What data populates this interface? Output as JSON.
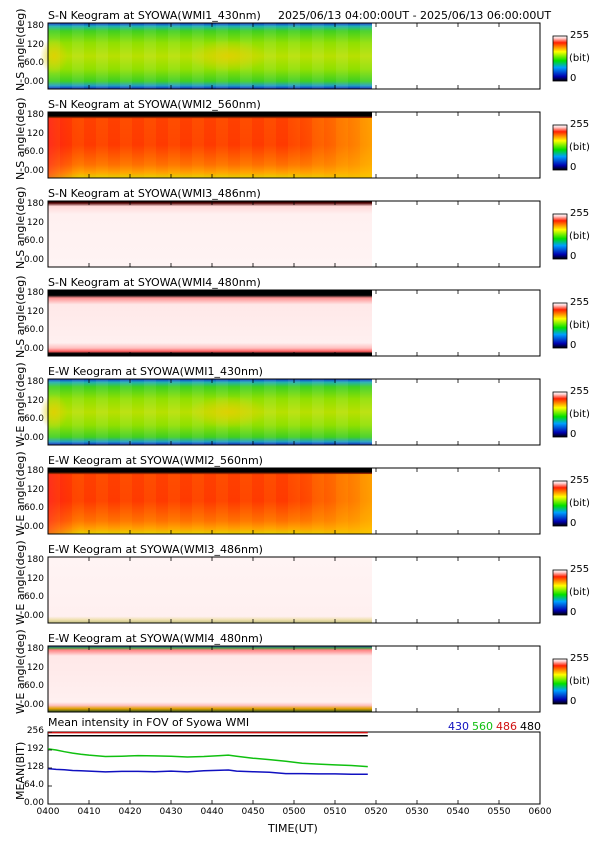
{
  "header": {
    "time_range": "2025/06/13 04:00:00UT - 2025/06/13 06:00:00UT"
  },
  "colorbar": {
    "max_label": "255",
    "unit_label": "(bit)",
    "min_label": "0"
  },
  "keogram_yticks": [
    "180",
    "120",
    "60.0",
    "0.00"
  ],
  "panels": [
    {
      "title": "S-N Keogram at SYOWA(WMI1_430nm)",
      "ylabel": "N-S angle(deg)",
      "scheme": "green"
    },
    {
      "title": "S-N Keogram at SYOWA(WMI2_560nm)",
      "ylabel": "N-S angle(deg)",
      "scheme": "red"
    },
    {
      "title": "S-N Keogram at SYOWA(WMI3_486nm)",
      "ylabel": "N-S angle(deg)",
      "scheme": "pale"
    },
    {
      "title": "S-N Keogram at SYOWA(WMI4_480nm)",
      "ylabel": "N-S angle(deg)",
      "scheme": "pale2"
    },
    {
      "title": "E-W Keogram at SYOWA(WMI1_430nm)",
      "ylabel": "W-E angle(deg)",
      "scheme": "green"
    },
    {
      "title": "E-W Keogram at SYOWA(WMI2_560nm)",
      "ylabel": "W-E angle(deg)",
      "scheme": "red"
    },
    {
      "title": "E-W Keogram at SYOWA(WMI3_486nm)",
      "ylabel": "W-E angle(deg)",
      "scheme": "pale3"
    },
    {
      "title": "E-W Keogram at SYOWA(WMI4_480nm)",
      "ylabel": "W-E angle(deg)",
      "scheme": "pale4"
    }
  ],
  "chart_data": {
    "type": "line",
    "title": "Mean intensity in FOV of Syowa WMI",
    "xlabel": "TIME(UT)",
    "ylabel": "MEAN(BIT)",
    "x_ticks": [
      "0400",
      "0410",
      "0420",
      "0430",
      "0440",
      "0450",
      "0500",
      "0510",
      "0520",
      "0530",
      "0540",
      "0550",
      "0600"
    ],
    "y_ticks": [
      "256",
      "192",
      "128",
      "64.0",
      "0.00"
    ],
    "xlim_min": [
      0,
      120
    ],
    "ylim": [
      0,
      256
    ],
    "data_end_min": 78,
    "legend": [
      {
        "name": "430",
        "color": "#1010c0"
      },
      {
        "name": "560",
        "color": "#10c010"
      },
      {
        "name": "486",
        "color": "#d01010"
      },
      {
        "name": "480",
        "color": "#000000"
      }
    ],
    "series": [
      {
        "name": "430",
        "color": "#1010c0",
        "x": [
          0,
          2,
          4,
          6,
          8,
          10,
          14,
          18,
          22,
          26,
          30,
          34,
          38,
          42,
          44,
          46,
          50,
          54,
          58,
          62,
          66,
          70,
          74,
          78
        ],
        "y": [
          126,
          123,
          122,
          119,
          118,
          117,
          114,
          116,
          116,
          115,
          117,
          114,
          118,
          120,
          121,
          117,
          115,
          113,
          108,
          108,
          107,
          107,
          106,
          106
        ]
      },
      {
        "name": "560",
        "color": "#10c010",
        "x": [
          0,
          2,
          4,
          6,
          8,
          10,
          14,
          18,
          22,
          26,
          30,
          34,
          38,
          42,
          44,
          46,
          50,
          54,
          58,
          62,
          66,
          70,
          74,
          78
        ],
        "y": [
          196,
          192,
          186,
          181,
          177,
          174,
          169,
          170,
          172,
          171,
          170,
          167,
          169,
          172,
          174,
          170,
          163,
          158,
          152,
          145,
          142,
          139,
          137,
          133
        ]
      },
      {
        "name": "486",
        "color": "#d01010",
        "x": [
          0,
          10,
          20,
          30,
          40,
          50,
          60,
          70,
          78
        ],
        "y": [
          254,
          254,
          254,
          254,
          254,
          254,
          254,
          254,
          254
        ]
      },
      {
        "name": "480",
        "color": "#000000",
        "x": [
          0,
          10,
          20,
          30,
          40,
          50,
          60,
          70,
          78
        ],
        "y": [
          243,
          243,
          243,
          243,
          243,
          243,
          243,
          243,
          243
        ]
      }
    ]
  }
}
